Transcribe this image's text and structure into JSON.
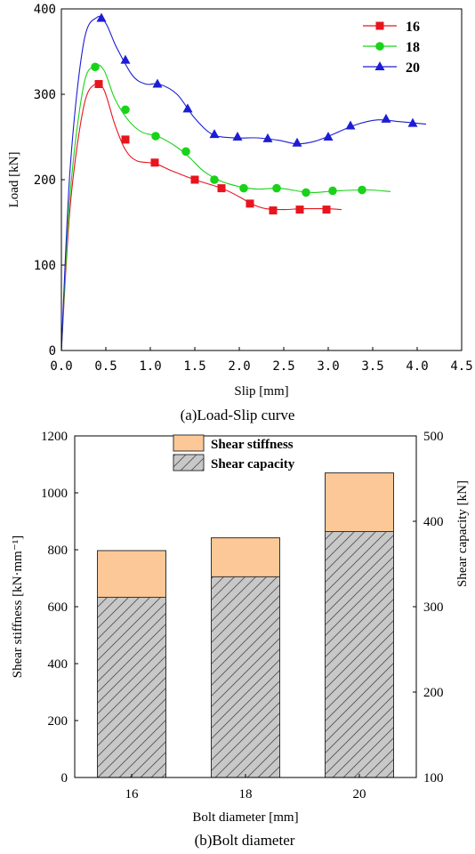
{
  "chart_data": [
    {
      "type": "line",
      "caption": "(a)Load-Slip curve",
      "xlabel": "Slip [mm]",
      "ylabel": "Load [kN]",
      "xlim": [
        0,
        4.5
      ],
      "ylim": [
        0,
        400
      ],
      "xticks": [
        "0.0",
        "0.5",
        "1.0",
        "1.5",
        "2.0",
        "2.5",
        "3.0",
        "3.5",
        "4.0",
        "4.5"
      ],
      "yticks": [
        "0",
        "100",
        "200",
        "300",
        "400"
      ],
      "legend_position": "top-right",
      "grid": false,
      "series": [
        {
          "name": "16",
          "color": "#e8141e",
          "marker": "square",
          "curve": [
            [
              0,
              0
            ],
            [
              0.1,
              170
            ],
            [
              0.25,
              285
            ],
            [
              0.38,
              312
            ],
            [
              0.48,
              305
            ],
            [
              0.6,
              265
            ],
            [
              0.72,
              235
            ],
            [
              0.85,
              222
            ],
            [
              1.05,
              219
            ],
            [
              1.25,
              210
            ],
            [
              1.5,
              200
            ],
            [
              1.8,
              190
            ],
            [
              2.0,
              180
            ],
            [
              2.15,
              171
            ],
            [
              2.3,
              166
            ],
            [
              2.5,
              165
            ],
            [
              2.7,
              166
            ],
            [
              2.95,
              166
            ],
            [
              3.15,
              165
            ]
          ],
          "points": [
            [
              0.42,
              312
            ],
            [
              0.72,
              247
            ],
            [
              1.05,
              220
            ],
            [
              1.5,
              200
            ],
            [
              1.8,
              190
            ],
            [
              2.12,
              172
            ],
            [
              2.38,
              164
            ],
            [
              2.68,
              165
            ],
            [
              2.98,
              165
            ]
          ]
        },
        {
          "name": "18",
          "color": "#19d219",
          "marker": "circle",
          "curve": [
            [
              0,
              0
            ],
            [
              0.1,
              185
            ],
            [
              0.25,
              310
            ],
            [
              0.38,
              333
            ],
            [
              0.48,
              328
            ],
            [
              0.6,
              295
            ],
            [
              0.75,
              270
            ],
            [
              0.9,
              256
            ],
            [
              1.1,
              250
            ],
            [
              1.3,
              238
            ],
            [
              1.45,
              225
            ],
            [
              1.6,
              210
            ],
            [
              1.8,
              198
            ],
            [
              2.0,
              192
            ],
            [
              2.2,
              189
            ],
            [
              2.45,
              190
            ],
            [
              2.7,
              186
            ],
            [
              2.85,
              185
            ],
            [
              3.1,
              187
            ],
            [
              3.45,
              188
            ],
            [
              3.7,
              186
            ]
          ],
          "points": [
            [
              0.38,
              332
            ],
            [
              0.72,
              282
            ],
            [
              1.06,
              251
            ],
            [
              1.4,
              233
            ],
            [
              1.72,
              200
            ],
            [
              2.05,
              190
            ],
            [
              2.42,
              190
            ],
            [
              2.75,
              185
            ],
            [
              3.05,
              187
            ],
            [
              3.38,
              188
            ]
          ]
        },
        {
          "name": "20",
          "color": "#1d1dd4",
          "marker": "triangle",
          "curve": [
            [
              0,
              0
            ],
            [
              0.1,
              215
            ],
            [
              0.25,
              360
            ],
            [
              0.4,
              390
            ],
            [
              0.5,
              383
            ],
            [
              0.62,
              355
            ],
            [
              0.8,
              322
            ],
            [
              0.95,
              312
            ],
            [
              1.1,
              312
            ],
            [
              1.3,
              300
            ],
            [
              1.5,
              272
            ],
            [
              1.7,
              253
            ],
            [
              1.95,
              249
            ],
            [
              2.2,
              249
            ],
            [
              2.45,
              246
            ],
            [
              2.65,
              242
            ],
            [
              2.85,
              245
            ],
            [
              3.05,
              253
            ],
            [
              3.3,
              264
            ],
            [
              3.55,
              270
            ],
            [
              3.8,
              268
            ],
            [
              4.1,
              265
            ]
          ],
          "points": [
            [
              0.45,
              389
            ],
            [
              0.72,
              340
            ],
            [
              1.08,
              312
            ],
            [
              1.42,
              283
            ],
            [
              1.72,
              253
            ],
            [
              1.98,
              250
            ],
            [
              2.32,
              248
            ],
            [
              2.65,
              243
            ],
            [
              3.0,
              250
            ],
            [
              3.25,
              263
            ],
            [
              3.65,
              271
            ],
            [
              3.95,
              266
            ]
          ]
        }
      ]
    },
    {
      "type": "bar",
      "caption": "(b)Bolt diameter",
      "xlabel": "Bolt diameter [mm]",
      "ylabel": "Shear stiffness [kN·mm⁻¹]",
      "ylabel_right": "Shear capacity [kN]",
      "categories": [
        "16",
        "18",
        "20"
      ],
      "ylim": [
        0,
        1200
      ],
      "ylim_right": [
        100,
        500
      ],
      "yticks": [
        "0",
        "200",
        "400",
        "600",
        "800",
        "1000",
        "1200"
      ],
      "yticks_right": [
        "100",
        "200",
        "300",
        "400",
        "500"
      ],
      "legend_position": "top-center",
      "grid": false,
      "series": [
        {
          "name": "Shear stiffness",
          "axis": "left",
          "color": "#fdc897",
          "values": [
            797,
            842,
            1070
          ]
        },
        {
          "name": "Shear capacity",
          "axis": "right",
          "color": "#c8c8c8",
          "pattern": "hatch",
          "values": [
            311,
            335,
            388
          ]
        }
      ]
    }
  ]
}
